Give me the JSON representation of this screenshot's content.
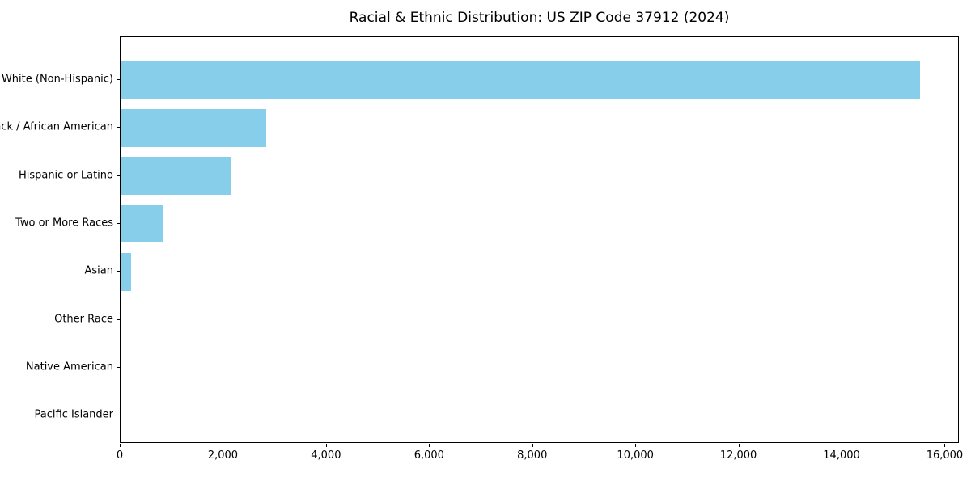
{
  "chart_data": {
    "type": "bar",
    "orientation": "horizontal",
    "title": "Racial & Ethnic Distribution: US ZIP Code 37912 (2024)",
    "categories": [
      "White (Non-Hispanic)",
      "Black / African American",
      "Hispanic or Latino",
      "Two or More Races",
      "Asian",
      "Other Race",
      "Native American",
      "Pacific Islander"
    ],
    "values": [
      15500,
      2820,
      2150,
      815,
      210,
      15,
      0,
      0
    ],
    "xlabel": "",
    "ylabel": "",
    "xlim": [
      0,
      16275
    ],
    "x_ticks": [
      0,
      2000,
      4000,
      6000,
      8000,
      10000,
      12000,
      14000,
      16000
    ],
    "x_tick_labels": [
      "0",
      "2,000",
      "4,000",
      "6,000",
      "8,000",
      "10,000",
      "12,000",
      "14,000",
      "16,000"
    ],
    "bar_color": "#87CEEB",
    "axis_color": "#000000",
    "background_color": "#ffffff",
    "grid": false,
    "legend": null
  }
}
